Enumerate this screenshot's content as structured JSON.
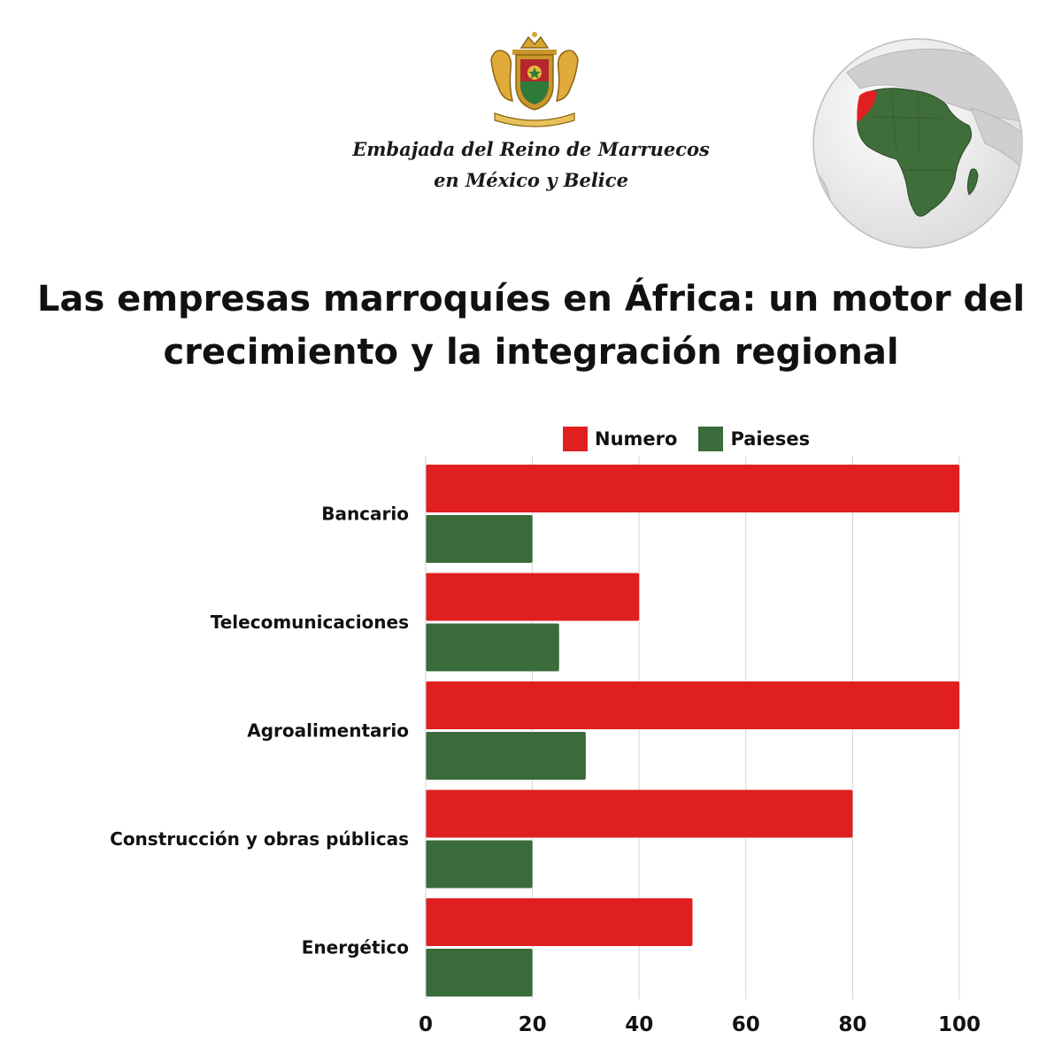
{
  "header": {
    "embassy_line1": "Embajada del Reino de Marruecos",
    "embassy_line2": "en México y Belice"
  },
  "colors": {
    "numero": "#e02020",
    "paises": "#3a6b3a",
    "grid": "#d4d4d4",
    "globe_land": "#3f6e3a",
    "globe_ocean": "#f2f2f2",
    "morocco": "#e02020"
  },
  "chart_data": {
    "type": "bar",
    "orientation": "horizontal",
    "title_lines": [
      "Las empresas marroquíes en África: un motor del",
      "crecimiento y la integración regional"
    ],
    "categories": [
      "Bancario",
      "Telecomunicaciones",
      "Agroalimentario",
      "Construcción y obras públicas",
      "Energético"
    ],
    "series": [
      {
        "name": "Numero",
        "values": [
          100,
          40,
          100,
          80,
          50
        ]
      },
      {
        "name": "Paieses",
        "values": [
          20,
          25,
          30,
          20,
          20
        ]
      }
    ],
    "xlim": [
      0,
      100
    ],
    "xticks": [
      "0",
      "20",
      "40",
      "60",
      "80",
      "100"
    ],
    "grid": true,
    "legend_position": "top-right"
  }
}
